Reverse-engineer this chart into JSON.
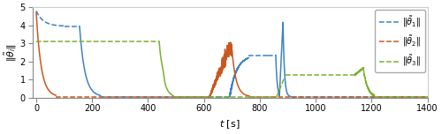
{
  "figsize": [
    5.0,
    1.52
  ],
  "dpi": 100,
  "xlim": [
    -14,
    1400
  ],
  "ylim": [
    0,
    5
  ],
  "xticks": [
    0,
    200,
    400,
    600,
    800,
    1000,
    1200,
    1400
  ],
  "yticks": [
    0,
    1,
    2,
    3,
    4,
    5
  ],
  "xlabel": "$t$ [s]",
  "ylabel": "$\\|\\tilde{\\theta}_i\\|$",
  "colors": {
    "blue": "#3d83c0",
    "orange": "#c85820",
    "green": "#7ab030"
  },
  "legend_labels": [
    "$\\|\\tilde{\\theta}_1\\|$",
    "$\\|\\tilde{\\theta}_2\\|$",
    "$\\|\\tilde{\\theta}_3\\|$"
  ],
  "background": "#ffffff",
  "lw": 1.1
}
